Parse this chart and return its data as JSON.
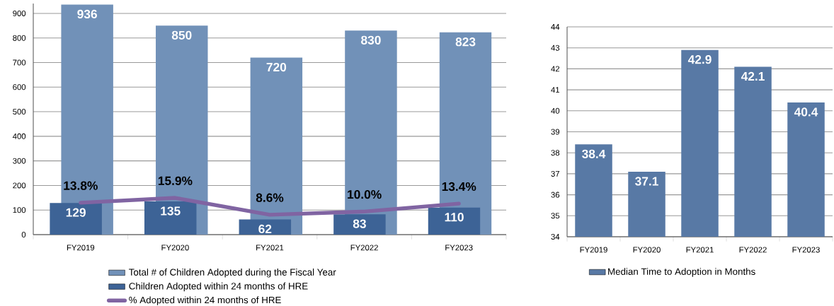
{
  "chart_data": [
    {
      "type": "bar",
      "categories": [
        "FY2019",
        "FY2020",
        "FY2021",
        "FY2022",
        "FY2023"
      ],
      "series": [
        {
          "name": "Total # of Children Adopted during the Fiscal Year",
          "color": "#7191b8",
          "values": [
            936,
            850,
            720,
            830,
            823
          ]
        },
        {
          "name": "Children Adopted within 24 months of HRE",
          "color": "#3d6396",
          "values": [
            129,
            135,
            62,
            83,
            110
          ]
        },
        {
          "name": "% Adopted within 24 months of HRE",
          "type": "line",
          "axis": "y2",
          "color": "#8064a2",
          "values": [
            13.8,
            15.9,
            8.6,
            10.0,
            13.4
          ],
          "value_labels": [
            "13.8%",
            "15.9%",
            "8.6%",
            "10.0%",
            "13.4%"
          ]
        }
      ],
      "ylim": [
        0,
        940
      ],
      "yticks": [
        0,
        100,
        200,
        300,
        400,
        500,
        600,
        700,
        800,
        900
      ],
      "y2lim": [
        0,
        100
      ],
      "grid": "y",
      "legend": "bottom",
      "data_labels": true
    },
    {
      "type": "bar",
      "categories": [
        "FY2019",
        "FY2020",
        "FY2021",
        "FY2022",
        "FY2023"
      ],
      "series": [
        {
          "name": "Median Time to Adoption in Months",
          "color": "#5879a5",
          "values": [
            38.4,
            37.1,
            42.9,
            42.1,
            40.4
          ]
        }
      ],
      "ylim": [
        34,
        44
      ],
      "yticks": [
        34,
        35,
        36,
        37,
        38,
        39,
        40,
        41,
        42,
        43,
        44
      ],
      "grid": "y",
      "legend": "bottom",
      "data_labels": true
    }
  ]
}
